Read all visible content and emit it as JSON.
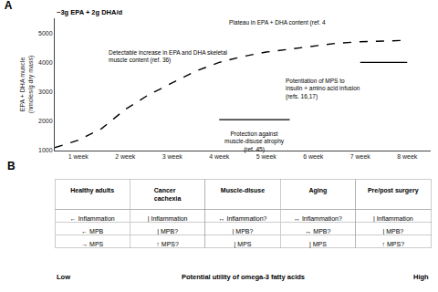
{
  "chart_data": [
    {
      "type": "line",
      "title": "A",
      "subtitle": "~3g EPA + 2g DHA/d",
      "ylabel": "EPA + DHA muscle\n(nmoles/g dry mass)",
      "series": [
        {
          "x": [
            0.5,
            1,
            1.5,
            2,
            2.5,
            3,
            3.5,
            4,
            4.5,
            5,
            5.5,
            6,
            6.5,
            7,
            7.5,
            8
          ],
          "values": [
            1100,
            1350,
            1750,
            2400,
            2900,
            3300,
            3700,
            4000,
            4200,
            4350,
            4450,
            4550,
            4650,
            4700,
            4730,
            4750
          ],
          "color": "#000000",
          "line_style": "dashed"
        },
        {
          "x": [
            4.0,
            5.5
          ],
          "values": [
            2050,
            2050
          ],
          "color": "#000000",
          "line_style": "solid"
        },
        {
          "x": [
            7.0,
            8.0
          ],
          "values": [
            4000,
            4000
          ],
          "color": "#000000",
          "line_style": "solid"
        }
      ],
      "xlim": [
        0.5,
        8.5
      ],
      "xticks": [
        {
          "value": 1,
          "label": "1 week"
        },
        {
          "value": 2,
          "label": "2 week"
        },
        {
          "value": 3,
          "label": "3 week"
        },
        {
          "value": 4,
          "label": "4 week"
        },
        {
          "value": 5,
          "label": "5 week"
        },
        {
          "value": 6,
          "label": "6 week"
        },
        {
          "value": 7,
          "label": "7 week"
        },
        {
          "value": 8,
          "label": "8 week"
        }
      ],
      "ylim": [
        1000,
        5500
      ],
      "yticks": [
        1000,
        2000,
        3000,
        4000,
        5000
      ],
      "grid": false,
      "annotations": [
        {
          "text": "Detectable increase in EPA and DHA skeletal\nmuscle content (ref. 36)",
          "x": 1.6,
          "y": 3900
        },
        {
          "text": "Protection against\nmuscle-disuse atrophy\n(ref. 45)",
          "x": 4.75,
          "y": 1750
        },
        {
          "text": "Plateau in EPA + DHA content (ref. 4",
          "x": 6.3,
          "y": 5150
        },
        {
          "text": "Potentiation of MPS to\ninsulin + amino acid infusion\n(refs. 16,17)",
          "x": 7.05,
          "y": 3100
        }
      ]
    },
    {
      "type": "table",
      "title": "B",
      "categories": [
        "Healthy adults",
        "Cancer\ncachexia",
        "Muscle-disuse",
        "Aging",
        "Pre/post surgery"
      ],
      "rows": [
        [
          "← Inflammation",
          "| Inflammation",
          "↔ Inflammation?",
          "↔ Inflammation?",
          "| Inflammation"
        ],
        [
          "← MPB",
          "| MPB?",
          "| MPB?",
          "↔ MPB?",
          "| MPB?"
        ],
        [
          "→ MPS",
          "↑ MPS?",
          "| MPS",
          "| MPS",
          "↑ MPS?"
        ]
      ],
      "annotations": [
        {
          "text": "Low"
        },
        {
          "text": "Potential utility of omega-3 fatty acids"
        },
        {
          "text": "High"
        }
      ]
    }
  ]
}
